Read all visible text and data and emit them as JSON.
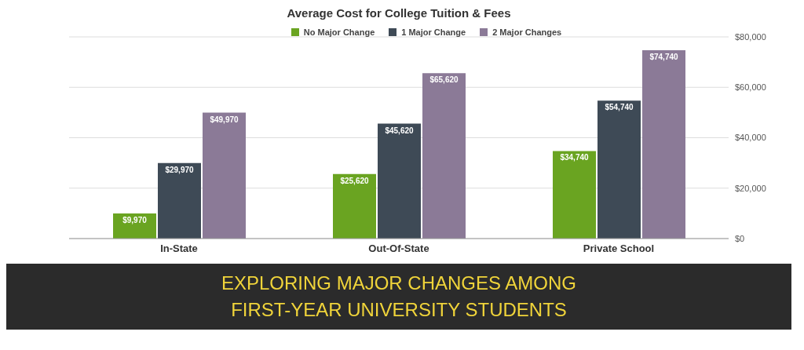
{
  "chart_data": {
    "type": "bar",
    "title": "Average Cost for College Tuition & Fees",
    "categories": [
      "In-State",
      "Out-Of-State",
      "Private School"
    ],
    "series": [
      {
        "name": "No Major Change",
        "color": "#6aa421",
        "values": [
          9970,
          25620,
          34740
        ],
        "value_labels": [
          "$9,970",
          "$25,620",
          "$34,740"
        ]
      },
      {
        "name": "1 Major Change",
        "color": "#3e4a56",
        "values": [
          29970,
          45620,
          54740
        ],
        "value_labels": [
          "$29,970",
          "$45,620",
          "$54,740"
        ]
      },
      {
        "name": "2 Major Changes",
        "color": "#8b7a97",
        "values": [
          49970,
          65620,
          74740
        ],
        "value_labels": [
          "$49,970",
          "$65,620",
          "$74,740"
        ]
      }
    ],
    "ylim": [
      0,
      80000
    ],
    "yticks": [
      {
        "value": 0,
        "label": "$0"
      },
      {
        "value": 20000,
        "label": "$20,000"
      },
      {
        "value": 40000,
        "label": "$40,000"
      },
      {
        "value": 60000,
        "label": "$60,000"
      },
      {
        "value": 80000,
        "label": "$80,000"
      }
    ],
    "grid": "y",
    "legend": "top",
    "annotations": [
      "EXPLORING MAJOR CHANGES AMONG",
      "FIRST-YEAR UNIVERSITY STUDENTS"
    ]
  }
}
